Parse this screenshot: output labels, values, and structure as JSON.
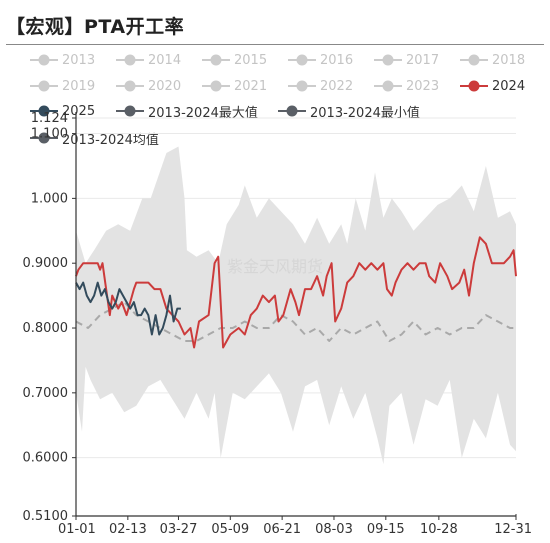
{
  "title": "【宏观】PTA开工率",
  "colors": {
    "band": "#e3e3e3",
    "avg": "#a9a9a9",
    "line_2024": "#cc3b3b",
    "line_2025": "#334b5c",
    "legend_off": "#cccccc",
    "max_marker": "#5a5f66",
    "min_marker": "#5a5f66",
    "grid": "#e9e9e9"
  },
  "watermark": "紫金天风期货",
  "legend": [
    {
      "label": "2013",
      "state": "off"
    },
    {
      "label": "2014",
      "state": "off"
    },
    {
      "label": "2015",
      "state": "off"
    },
    {
      "label": "2016",
      "state": "off"
    },
    {
      "label": "2017",
      "state": "off"
    },
    {
      "label": "2018",
      "state": "off"
    },
    {
      "label": "2019",
      "state": "off"
    },
    {
      "label": "2020",
      "state": "off"
    },
    {
      "label": "2021",
      "state": "off"
    },
    {
      "label": "2022",
      "state": "off"
    },
    {
      "label": "2023",
      "state": "off"
    },
    {
      "label": "2024",
      "state": "on",
      "color": "#cc3b3b"
    },
    {
      "label": "2025",
      "state": "on",
      "color": "#334b5c"
    },
    {
      "label": "2013-2024最大值",
      "state": "on",
      "color": "#5a5f66"
    },
    {
      "label": "2013-2024最小值",
      "state": "on",
      "color": "#5a5f66"
    },
    {
      "label": "2013-2024均值",
      "state": "on",
      "color": "#5a5f66"
    }
  ],
  "chart_data": {
    "type": "line",
    "title": "",
    "xlabel": "",
    "ylabel": "",
    "x_tick_labels": [
      "01-01",
      "02-13",
      "03-27",
      "05-09",
      "06-21",
      "08-03",
      "09-15",
      "10-28",
      "12-31"
    ],
    "x_tick_days": [
      0,
      43,
      85,
      128,
      171,
      214,
      257,
      301,
      365
    ],
    "y_tick_labels": [
      "0.5100",
      "0.6000",
      "0.7000",
      "0.8000",
      "0.9000",
      "1.000",
      "1.100",
      "1.124"
    ],
    "y_tick_values": [
      0.51,
      0.6,
      0.7,
      0.8,
      0.9,
      1.0,
      1.1,
      1.124
    ],
    "ylim": [
      0.51,
      1.124
    ],
    "xlim": [
      0,
      365
    ],
    "grid": true,
    "legend_position": "top",
    "x_unit": "day of year",
    "series": [
      {
        "name": "2013-2024最大值",
        "role": "band_upper",
        "x": [
          0,
          8,
          15,
          25,
          35,
          45,
          55,
          62,
          75,
          85,
          90,
          92,
          100,
          110,
          118,
          125,
          135,
          140,
          150,
          160,
          170,
          180,
          190,
          200,
          210,
          220,
          225,
          232,
          240,
          248,
          255,
          262,
          270,
          280,
          290,
          300,
          310,
          320,
          330,
          340,
          350,
          360,
          365
        ],
        "values": [
          0.95,
          0.9,
          0.92,
          0.95,
          0.96,
          0.95,
          1.0,
          1.0,
          1.07,
          1.08,
          1.0,
          0.92,
          0.91,
          0.92,
          0.9,
          0.96,
          0.99,
          1.02,
          0.97,
          1.0,
          0.98,
          0.96,
          0.93,
          0.97,
          0.93,
          0.96,
          0.93,
          1.0,
          0.95,
          1.04,
          0.97,
          1.0,
          0.98,
          0.95,
          0.97,
          0.99,
          1.0,
          1.02,
          0.98,
          1.05,
          0.97,
          0.98,
          0.96
        ]
      },
      {
        "name": "2013-2024最小值",
        "role": "band_lower",
        "x": [
          0,
          5,
          8,
          12,
          20,
          30,
          40,
          50,
          60,
          70,
          80,
          90,
          100,
          110,
          115,
          120,
          130,
          140,
          150,
          160,
          170,
          180,
          190,
          200,
          210,
          220,
          230,
          240,
          250,
          255,
          260,
          270,
          280,
          290,
          300,
          310,
          320,
          330,
          340,
          350,
          360,
          365
        ],
        "values": [
          0.7,
          0.64,
          0.74,
          0.72,
          0.69,
          0.7,
          0.67,
          0.68,
          0.71,
          0.72,
          0.69,
          0.66,
          0.7,
          0.66,
          0.7,
          0.6,
          0.7,
          0.69,
          0.71,
          0.73,
          0.7,
          0.64,
          0.71,
          0.72,
          0.65,
          0.71,
          0.66,
          0.7,
          0.63,
          0.59,
          0.68,
          0.7,
          0.62,
          0.69,
          0.68,
          0.72,
          0.6,
          0.66,
          0.63,
          0.7,
          0.62,
          0.61
        ]
      },
      {
        "name": "2013-2024均值",
        "role": "avg",
        "x": [
          0,
          10,
          20,
          30,
          40,
          50,
          60,
          70,
          80,
          90,
          100,
          110,
          120,
          130,
          140,
          150,
          160,
          170,
          180,
          190,
          200,
          210,
          220,
          230,
          240,
          250,
          260,
          270,
          280,
          290,
          300,
          310,
          320,
          330,
          340,
          350,
          360,
          365
        ],
        "values": [
          0.81,
          0.8,
          0.82,
          0.83,
          0.84,
          0.82,
          0.81,
          0.8,
          0.79,
          0.78,
          0.78,
          0.79,
          0.8,
          0.8,
          0.81,
          0.8,
          0.8,
          0.82,
          0.81,
          0.79,
          0.8,
          0.78,
          0.8,
          0.79,
          0.8,
          0.81,
          0.78,
          0.79,
          0.81,
          0.79,
          0.8,
          0.79,
          0.8,
          0.8,
          0.82,
          0.81,
          0.8,
          0.8
        ]
      },
      {
        "name": "2024",
        "role": "line",
        "x": [
          0,
          2,
          6,
          12,
          18,
          20,
          22,
          28,
          30,
          35,
          38,
          42,
          48,
          50,
          55,
          60,
          65,
          70,
          75,
          80,
          85,
          90,
          95,
          98,
          102,
          110,
          115,
          118,
          122,
          128,
          135,
          140,
          145,
          150,
          155,
          160,
          165,
          168,
          172,
          178,
          182,
          185,
          190,
          195,
          200,
          205,
          208,
          212,
          215,
          220,
          225,
          230,
          235,
          240,
          245,
          250,
          255,
          258,
          262,
          265,
          270,
          275,
          280,
          285,
          290,
          293,
          298,
          302,
          308,
          312,
          318,
          322,
          326,
          330,
          335,
          340,
          345,
          350,
          355,
          360,
          363,
          365
        ],
        "values": [
          0.88,
          0.89,
          0.9,
          0.9,
          0.9,
          0.89,
          0.9,
          0.82,
          0.85,
          0.83,
          0.84,
          0.82,
          0.86,
          0.87,
          0.87,
          0.87,
          0.86,
          0.86,
          0.83,
          0.82,
          0.81,
          0.79,
          0.8,
          0.77,
          0.81,
          0.82,
          0.9,
          0.91,
          0.77,
          0.79,
          0.8,
          0.79,
          0.82,
          0.83,
          0.85,
          0.84,
          0.85,
          0.81,
          0.82,
          0.86,
          0.84,
          0.82,
          0.86,
          0.86,
          0.88,
          0.85,
          0.88,
          0.9,
          0.81,
          0.83,
          0.87,
          0.88,
          0.9,
          0.89,
          0.9,
          0.89,
          0.9,
          0.86,
          0.85,
          0.87,
          0.89,
          0.9,
          0.89,
          0.9,
          0.9,
          0.88,
          0.87,
          0.9,
          0.88,
          0.86,
          0.87,
          0.89,
          0.85,
          0.9,
          0.94,
          0.93,
          0.9,
          0.9,
          0.9,
          0.91,
          0.92,
          0.88
        ]
      },
      {
        "name": "2025",
        "role": "line",
        "x": [
          0,
          3,
          6,
          9,
          12,
          15,
          18,
          21,
          24,
          27,
          30,
          33,
          36,
          39,
          42,
          45,
          48,
          51,
          54,
          57,
          60,
          63,
          66,
          69,
          72,
          75,
          78,
          81,
          84,
          87
        ],
        "values": [
          0.87,
          0.86,
          0.87,
          0.85,
          0.84,
          0.85,
          0.87,
          0.85,
          0.86,
          0.84,
          0.83,
          0.84,
          0.86,
          0.85,
          0.84,
          0.83,
          0.84,
          0.82,
          0.82,
          0.83,
          0.82,
          0.79,
          0.82,
          0.79,
          0.8,
          0.82,
          0.85,
          0.81,
          0.83,
          0.83
        ]
      }
    ]
  }
}
